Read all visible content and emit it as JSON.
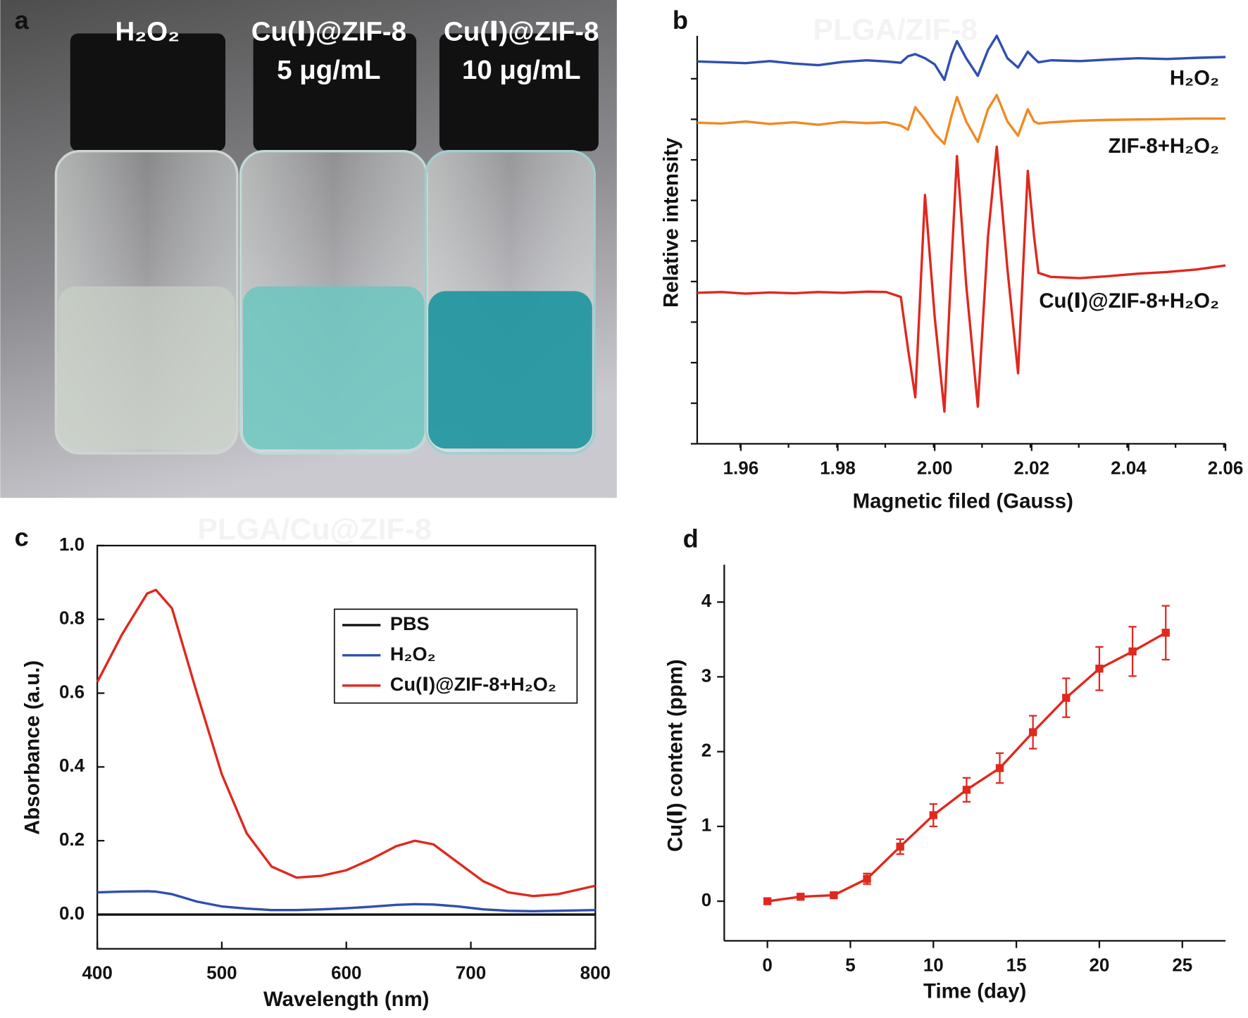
{
  "chart_data": [
    {
      "type": "photo",
      "panel": "a",
      "labels": [
        "H₂O₂",
        "Cu(Ⅰ)@ZIF-8",
        "5 μg/mL",
        "Cu(Ⅰ)@ZIF-8",
        "10 μg/mL"
      ]
    },
    {
      "type": "line",
      "panel": "b",
      "x_label": "Magnetic filed (Gauss)",
      "y_label": "Relative intensity",
      "x": [
        1.951,
        1.956,
        1.961,
        1.966,
        1.971,
        1.976,
        1.981,
        1.986,
        1.99,
        1.993,
        1.9945,
        1.996,
        1.998,
        2.0,
        2.002,
        2.0035,
        2.0046,
        2.0065,
        2.0089,
        2.011,
        2.0128,
        2.015,
        2.0172,
        2.0192,
        2.0205,
        2.0214,
        2.024,
        2.03,
        2.036,
        2.042,
        2.048,
        2.054,
        2.06
      ],
      "xlim": [
        1.951,
        2.06
      ],
      "xticks": [
        {
          "value": 1.96,
          "label": "1.96"
        },
        {
          "value": 1.98,
          "label": "1.98"
        },
        {
          "value": 2.0,
          "label": "2.00"
        },
        {
          "value": 2.02,
          "label": "2.02"
        },
        {
          "value": 2.04,
          "label": "2.04"
        },
        {
          "value": 2.06,
          "label": "2.06"
        }
      ],
      "ylim": [
        0,
        10
      ],
      "series": [
        {
          "name": "H₂O₂",
          "color": "#2f4fb0",
          "values": [
            9.37,
            9.35,
            9.33,
            9.38,
            9.32,
            9.28,
            9.36,
            9.4,
            9.37,
            9.34,
            9.5,
            9.55,
            9.45,
            9.3,
            8.92,
            9.55,
            9.87,
            9.45,
            9.02,
            9.65,
            10.0,
            9.45,
            9.22,
            9.61,
            9.45,
            9.35,
            9.4,
            9.38,
            9.42,
            9.45,
            9.43,
            9.46,
            9.48
          ]
        },
        {
          "name": "ZIF-8+H₂O₂",
          "color": "#f08a24",
          "values": [
            7.87,
            7.85,
            7.9,
            7.84,
            7.88,
            7.82,
            7.89,
            7.86,
            7.88,
            7.8,
            7.7,
            8.25,
            7.95,
            7.6,
            7.35,
            8.05,
            8.5,
            7.9,
            7.4,
            8.2,
            8.55,
            7.9,
            7.55,
            8.2,
            7.9,
            7.85,
            7.88,
            7.92,
            7.94,
            7.95,
            7.96,
            7.97,
            7.97
          ]
        },
        {
          "name": "Cu(Ⅰ)@ZIF-8+H₂O₂",
          "color": "#e0281e",
          "values": [
            3.7,
            3.72,
            3.68,
            3.71,
            3.69,
            3.72,
            3.7,
            3.73,
            3.72,
            3.6,
            2.32,
            1.14,
            6.1,
            3.11,
            0.79,
            4.49,
            7.05,
            3.9,
            0.91,
            5.08,
            7.28,
            4.29,
            1.73,
            6.69,
            5.08,
            4.19,
            4.09,
            4.06,
            4.11,
            4.17,
            4.21,
            4.27,
            4.37
          ]
        }
      ]
    },
    {
      "type": "line",
      "panel": "c",
      "x_label": "Wavelength (nm)",
      "y_label": "Absorbance (a.u.)",
      "x": [
        400,
        420,
        440,
        447,
        460,
        480,
        500,
        520,
        540,
        560,
        580,
        600,
        620,
        640,
        655,
        670,
        690,
        710,
        730,
        750,
        770,
        800
      ],
      "xlim": [
        400,
        800
      ],
      "xticks": [
        400,
        500,
        600,
        700,
        800
      ],
      "ylim": [
        -0.093,
        1.0
      ],
      "yticks": [
        {
          "value": 0,
          "label": "0.0"
        },
        0.2,
        0.4,
        0.6,
        0.8,
        {
          "value": 1.0,
          "label": "1.0"
        }
      ],
      "legend": "top-right",
      "series": [
        {
          "name": "PBS",
          "color": "#111111",
          "values": [
            0,
            0,
            0,
            0,
            0,
            0,
            0,
            0,
            0,
            0,
            0,
            0,
            0,
            0,
            0,
            0,
            0,
            0,
            0,
            0,
            0,
            0
          ]
        },
        {
          "name": "H₂O₂",
          "color": "#2f4fb0",
          "values": [
            0.06,
            0.062,
            0.063,
            0.062,
            0.055,
            0.035,
            0.022,
            0.016,
            0.012,
            0.012,
            0.014,
            0.017,
            0.021,
            0.026,
            0.028,
            0.027,
            0.022,
            0.014,
            0.01,
            0.009,
            0.01,
            0.012
          ]
        },
        {
          "name": "Cu(Ⅰ)@ZIF-8+H₂O₂",
          "color": "#e0281e",
          "values": [
            0.63,
            0.76,
            0.87,
            0.88,
            0.83,
            0.6,
            0.38,
            0.22,
            0.13,
            0.1,
            0.105,
            0.12,
            0.15,
            0.185,
            0.2,
            0.19,
            0.14,
            0.09,
            0.06,
            0.05,
            0.055,
            0.078
          ]
        }
      ]
    },
    {
      "type": "errorline",
      "panel": "d",
      "x_label": "Time (day)",
      "y_label": "Cu(Ⅰ) content (ppm)",
      "x": [
        0,
        2,
        4,
        6,
        8,
        10,
        12,
        14,
        16,
        18,
        20,
        22,
        24
      ],
      "xlim": [
        -2.6,
        27.6
      ],
      "xticks": [
        0,
        5,
        10,
        15,
        20,
        25
      ],
      "ylim": [
        -0.53,
        4.5
      ],
      "yticks": [
        0,
        1,
        2,
        3,
        4
      ],
      "color": "#e0281e",
      "values": [
        0,
        0.06,
        0.08,
        0.3,
        0.73,
        1.15,
        1.49,
        1.78,
        2.26,
        2.72,
        3.11,
        3.34,
        3.59
      ],
      "errors": [
        0.02,
        0.03,
        0.03,
        0.07,
        0.1,
        0.15,
        0.16,
        0.2,
        0.22,
        0.26,
        0.29,
        0.33,
        0.36
      ]
    }
  ],
  "watermarks": [
    "PLGA/ZIF-8",
    "PLGA/Cu@ZIF-8"
  ]
}
